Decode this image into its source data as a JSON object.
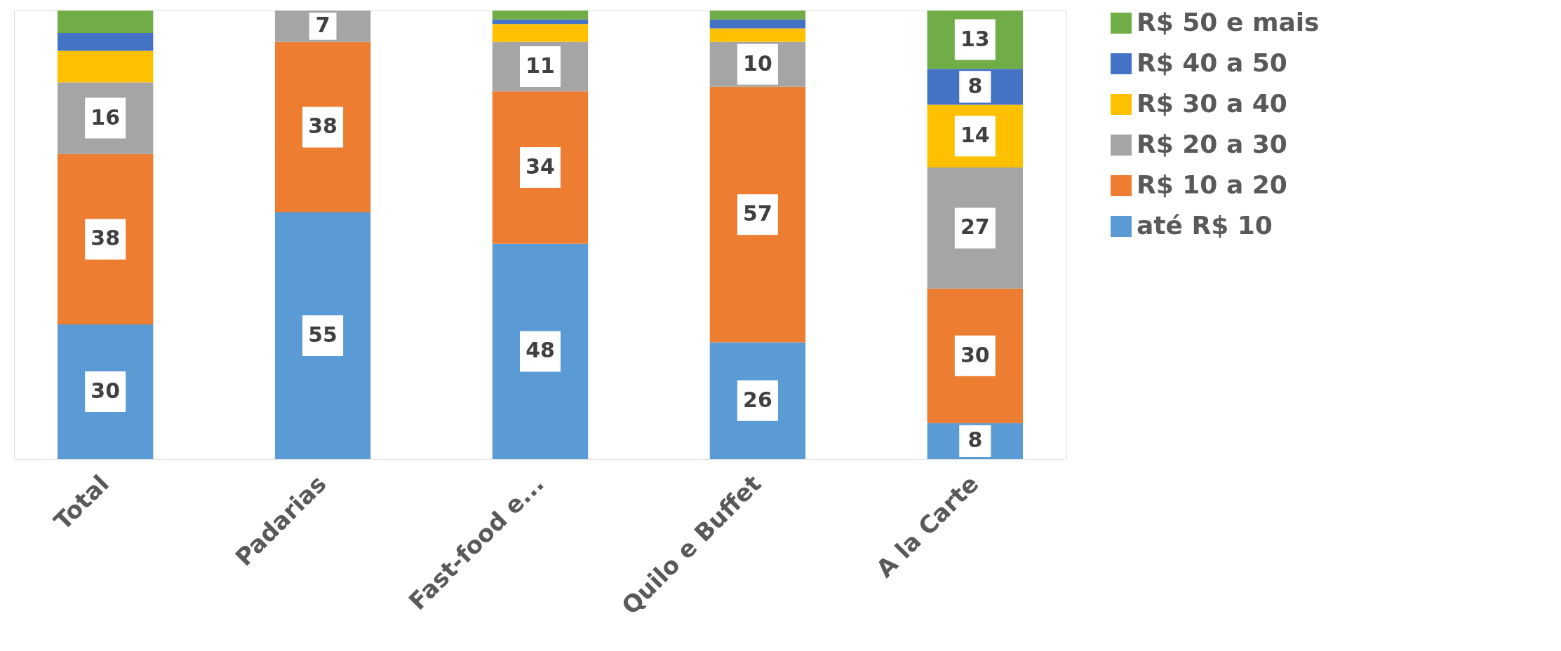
{
  "chart_data": {
    "type": "bar",
    "stacked": true,
    "categories": [
      "Total",
      "Padarias",
      "Fast-food e...",
      "Quilo e Buffet",
      "A la Carte"
    ],
    "series": [
      {
        "name": "até R$ 10",
        "color": "#5b9bd5",
        "values": [
          30,
          55,
          48,
          26,
          8
        ],
        "value_labels": [
          "30",
          "55",
          "48",
          "26",
          "8"
        ]
      },
      {
        "name": "R$ 10 a 20",
        "color": "#ed7d31",
        "values": [
          38,
          38,
          34,
          57,
          30
        ],
        "value_labels": [
          "38",
          "38",
          "34",
          "57",
          "30"
        ]
      },
      {
        "name": "R$ 20 a 30",
        "color": "#a5a5a5",
        "values": [
          16,
          7,
          11,
          10,
          27
        ],
        "value_labels": [
          "16",
          "7",
          "11",
          "10",
          "27"
        ]
      },
      {
        "name": "R$ 30 a 40",
        "color": "#ffc000",
        "values": [
          7,
          0,
          4,
          3,
          14
        ],
        "value_labels": [
          null,
          null,
          null,
          null,
          "14"
        ]
      },
      {
        "name": "R$ 40 a 50",
        "color": "#4472c4",
        "values": [
          4,
          0,
          1,
          2,
          8
        ],
        "value_labels": [
          null,
          null,
          null,
          null,
          "8"
        ]
      },
      {
        "name": "R$ 50 e mais",
        "color": "#70ad47",
        "values": [
          5,
          0,
          2,
          2,
          13
        ],
        "value_labels": [
          null,
          null,
          null,
          null,
          "13"
        ]
      }
    ],
    "ylim": [
      0,
      100
    ],
    "tick_labels": "x",
    "legend": "right"
  }
}
